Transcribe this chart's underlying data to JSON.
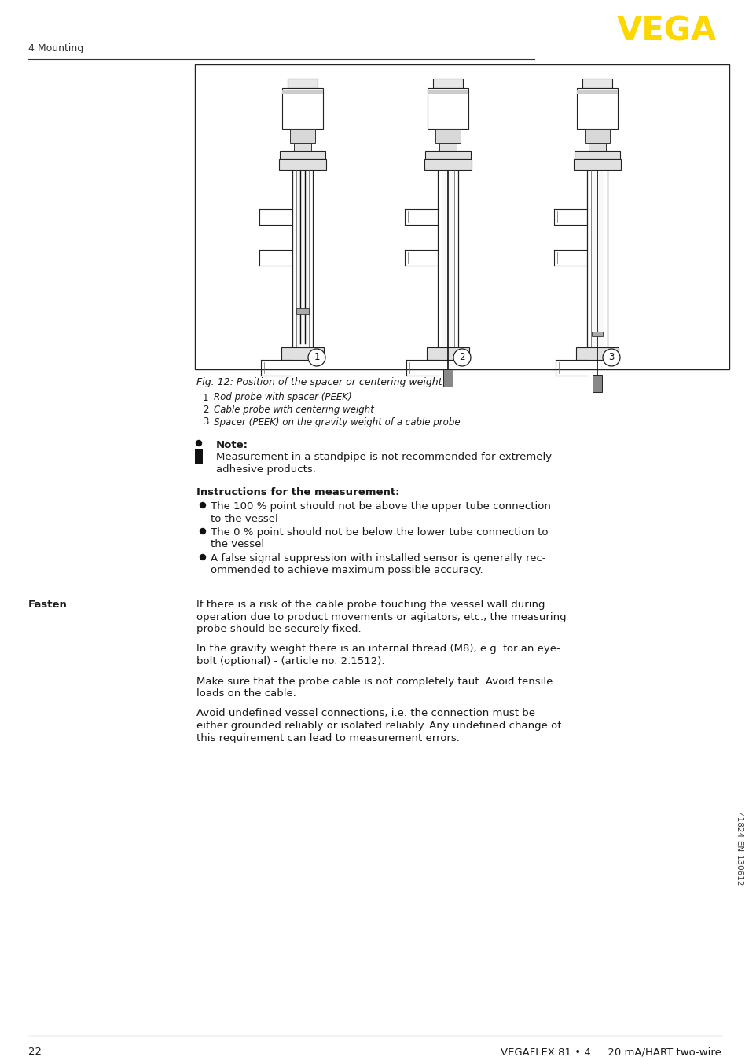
{
  "page_number": "22",
  "footer_text": "VEGAFLEX 81 • 4 … 20 mA/HART two-wire",
  "header_section": "4 Mounting",
  "vega_color": "#FFD700",
  "fig_caption": "Fig. 12: Position of the spacer or centering weight",
  "fig_items": [
    [
      "1",
      "Rod probe with spacer (PEEK)"
    ],
    [
      "2",
      "Cable probe with centering weight"
    ],
    [
      "3",
      "Spacer (PEEK) on the gravity weight of a cable probe"
    ]
  ],
  "note_title": "Note:",
  "note_line1": "Measurement in a standpipe is not recommended for extremely",
  "note_line2": "adhesive products.",
  "instructions_title": "Instructions for the measurement:",
  "bullet1_line1": "The 100 % point should not be above the upper tube connection",
  "bullet1_line2": "to the vessel",
  "bullet2_line1": "The 0 % point should not be below the lower tube connection to",
  "bullet2_line2": "the vessel",
  "bullet3_line1": "A false signal suppression with installed sensor is generally rec-",
  "bullet3_line2": "ommended to achieve maximum possible accuracy.",
  "fasten_label": "Fasten",
  "fasten_p1_l1": "If there is a risk of the cable probe touching the vessel wall during",
  "fasten_p1_l2": "operation due to product movements or agitators, etc., the measuring",
  "fasten_p1_l3": "probe should be securely fixed.",
  "fasten_p2_l1": "In the gravity weight there is an internal thread (M8), e.g. for an eye-",
  "fasten_p2_l2": "bolt (optional) - (article no. 2.1512).",
  "fasten_p3_l1": "Make sure that the probe cable is not completely taut. Avoid tensile",
  "fasten_p3_l2": "loads on the cable.",
  "fasten_p4_l1": "Avoid undefined vessel connections, i.e. the connection must be",
  "fasten_p4_l2": "either grounded reliably or isolated reliably. Any undefined change of",
  "fasten_p4_l3": "this requirement can lead to measurement errors.",
  "side_text": "41824-EN-130612",
  "bg_color": "#ffffff",
  "text_color": "#1a1a1a",
  "line_color": "#333333"
}
